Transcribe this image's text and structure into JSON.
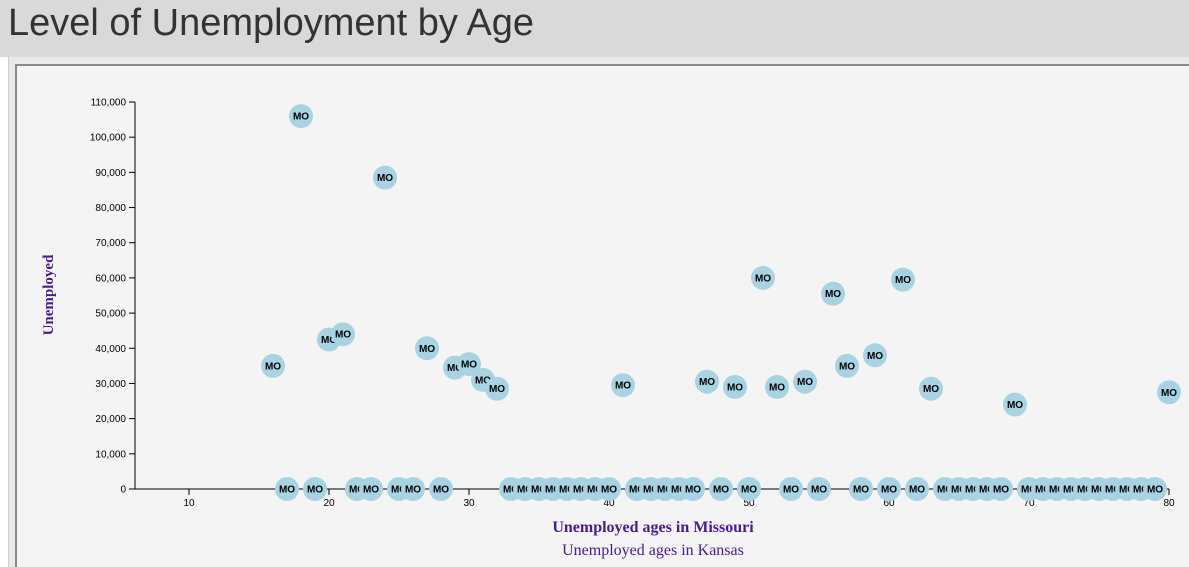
{
  "page": {
    "title": "Level of Unemployment by Age"
  },
  "chart_data": {
    "type": "scatter",
    "title": "Level of Unemployment by Age",
    "xlabel": "Unemployed ages in Missouri",
    "xlabel2": "Unemployed ages in Kansas",
    "ylabel": "Unemployed",
    "point_label": "MO",
    "xlim": [
      6,
      80
    ],
    "ylim": [
      0,
      110000
    ],
    "x_ticks": [
      10,
      20,
      30,
      40,
      50,
      60,
      70,
      80
    ],
    "y_ticks": [
      0,
      10000,
      20000,
      30000,
      40000,
      50000,
      60000,
      70000,
      80000,
      90000,
      100000,
      110000
    ],
    "y_tick_labels": [
      "0",
      "10,000",
      "20,000",
      "30,000",
      "40,000",
      "50,000",
      "60,000",
      "70,000",
      "80,000",
      "90,000",
      "100,000",
      "110,000"
    ],
    "grid": false,
    "marker_color": "#a8d3e3",
    "axis_title_color": "#4b1a8e",
    "points": [
      {
        "x": 16,
        "y": 35000
      },
      {
        "x": 17,
        "y": 0
      },
      {
        "x": 18,
        "y": 106000
      },
      {
        "x": 19,
        "y": 0
      },
      {
        "x": 20,
        "y": 42500
      },
      {
        "x": 21,
        "y": 44000
      },
      {
        "x": 22,
        "y": 0
      },
      {
        "x": 23,
        "y": 0
      },
      {
        "x": 24,
        "y": 88500
      },
      {
        "x": 25,
        "y": 0
      },
      {
        "x": 26,
        "y": 0
      },
      {
        "x": 27,
        "y": 40000
      },
      {
        "x": 28,
        "y": 0
      },
      {
        "x": 29,
        "y": 34500
      },
      {
        "x": 30,
        "y": 35500
      },
      {
        "x": 31,
        "y": 31000
      },
      {
        "x": 32,
        "y": 28500
      },
      {
        "x": 33,
        "y": 0
      },
      {
        "x": 34,
        "y": 0
      },
      {
        "x": 35,
        "y": 0
      },
      {
        "x": 36,
        "y": 0
      },
      {
        "x": 37,
        "y": 0
      },
      {
        "x": 38,
        "y": 0
      },
      {
        "x": 39,
        "y": 0
      },
      {
        "x": 40,
        "y": 0
      },
      {
        "x": 41,
        "y": 29500
      },
      {
        "x": 42,
        "y": 0
      },
      {
        "x": 43,
        "y": 0
      },
      {
        "x": 44,
        "y": 0
      },
      {
        "x": 45,
        "y": 0
      },
      {
        "x": 46,
        "y": 0
      },
      {
        "x": 47,
        "y": 30500
      },
      {
        "x": 48,
        "y": 0
      },
      {
        "x": 49,
        "y": 29000
      },
      {
        "x": 50,
        "y": 0
      },
      {
        "x": 51,
        "y": 60000
      },
      {
        "x": 52,
        "y": 29000
      },
      {
        "x": 53,
        "y": 0
      },
      {
        "x": 54,
        "y": 30500
      },
      {
        "x": 55,
        "y": 0
      },
      {
        "x": 56,
        "y": 55500
      },
      {
        "x": 57,
        "y": 35000
      },
      {
        "x": 58,
        "y": 0
      },
      {
        "x": 59,
        "y": 38000
      },
      {
        "x": 60,
        "y": 0
      },
      {
        "x": 61,
        "y": 59500
      },
      {
        "x": 62,
        "y": 0
      },
      {
        "x": 63,
        "y": 28500
      },
      {
        "x": 64,
        "y": 0
      },
      {
        "x": 65,
        "y": 0
      },
      {
        "x": 66,
        "y": 0
      },
      {
        "x": 67,
        "y": 0
      },
      {
        "x": 68,
        "y": 0
      },
      {
        "x": 69,
        "y": 24000
      },
      {
        "x": 70,
        "y": 0
      },
      {
        "x": 71,
        "y": 0
      },
      {
        "x": 72,
        "y": 0
      },
      {
        "x": 73,
        "y": 0
      },
      {
        "x": 74,
        "y": 0
      },
      {
        "x": 75,
        "y": 0
      },
      {
        "x": 76,
        "y": 0
      },
      {
        "x": 77,
        "y": 0
      },
      {
        "x": 78,
        "y": 0
      },
      {
        "x": 79,
        "y": 0
      },
      {
        "x": 80,
        "y": 27500
      }
    ]
  }
}
